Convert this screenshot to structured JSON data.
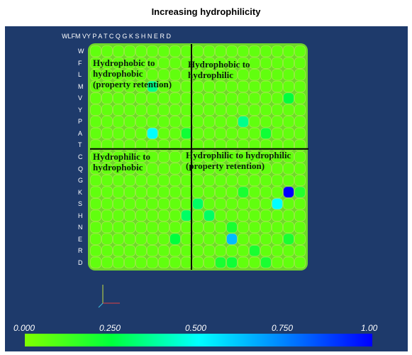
{
  "chart_data": {
    "type": "heatmap",
    "title": "Increasing hydrophilicity",
    "x_labels": [
      "W",
      "L",
      "F",
      "M",
      "V",
      "Y",
      "P",
      "A",
      "T",
      "C",
      "Q",
      "G",
      "K",
      "S",
      "H",
      "N",
      "E",
      "R",
      "D"
    ],
    "y_labels": [
      "W",
      "F",
      "L",
      "M",
      "V",
      "Y",
      "P",
      "A",
      "T",
      "C",
      "Q",
      "G",
      "K",
      "S",
      "H",
      "N",
      "E",
      "R",
      "D"
    ],
    "column_header_text": "WLFM VY P A T C Q G K S H N E R D",
    "color_scale": {
      "min": 0.0,
      "max": 1.0,
      "tick_labels": [
        "0.000",
        "0.250",
        "0.500",
        "0.750",
        "1.00"
      ],
      "colors": [
        "#7fff00",
        "#00ff3c",
        "#00ffff",
        "#0090ff",
        "#0000ff"
      ]
    },
    "quadrant_annotations": {
      "top_left": "Hydrophobic to hydrophobic (property retention)",
      "top_right": "Hydrophobic to hydrophilic",
      "bottom_left": "Hydrophilic to hydrophobic",
      "bottom_right": "Hydrophilic to hydrophilic (property retention)"
    },
    "highlight_cells": [
      {
        "row": "K",
        "col": "R",
        "value": 1.0
      },
      {
        "row": "E",
        "col": "K",
        "value": 0.65
      },
      {
        "row": "S",
        "col": "E",
        "value": 0.5
      },
      {
        "row": "A",
        "col": "Y",
        "value": 0.5
      },
      {
        "row": "P",
        "col": "S",
        "value": 0.35
      },
      {
        "row": "H",
        "col": "T",
        "value": 0.3
      },
      {
        "row": "H",
        "col": "Q",
        "value": 0.3
      },
      {
        "row": "S",
        "col": "C",
        "value": 0.3
      },
      {
        "row": "E",
        "col": "A",
        "value": 0.25
      },
      {
        "row": "A",
        "col": "T",
        "value": 0.22
      },
      {
        "row": "V",
        "col": "R",
        "value": 0.25
      },
      {
        "row": "A",
        "col": "N",
        "value": 0.22
      },
      {
        "row": "K",
        "col": "S",
        "value": 0.2
      },
      {
        "row": "D",
        "col": "K",
        "value": 0.22
      },
      {
        "row": "D",
        "col": "G",
        "value": 0.2
      },
      {
        "row": "D",
        "col": "N",
        "value": 0.2
      },
      {
        "row": "R",
        "col": "H",
        "value": 0.2
      },
      {
        "row": "N",
        "col": "K",
        "value": 0.2
      },
      {
        "row": "E",
        "col": "R",
        "value": 0.2
      },
      {
        "row": "K",
        "col": "D",
        "value": 0.18
      },
      {
        "row": "M",
        "col": "Y",
        "value": 0.35
      }
    ],
    "base_value": 0.06
  }
}
